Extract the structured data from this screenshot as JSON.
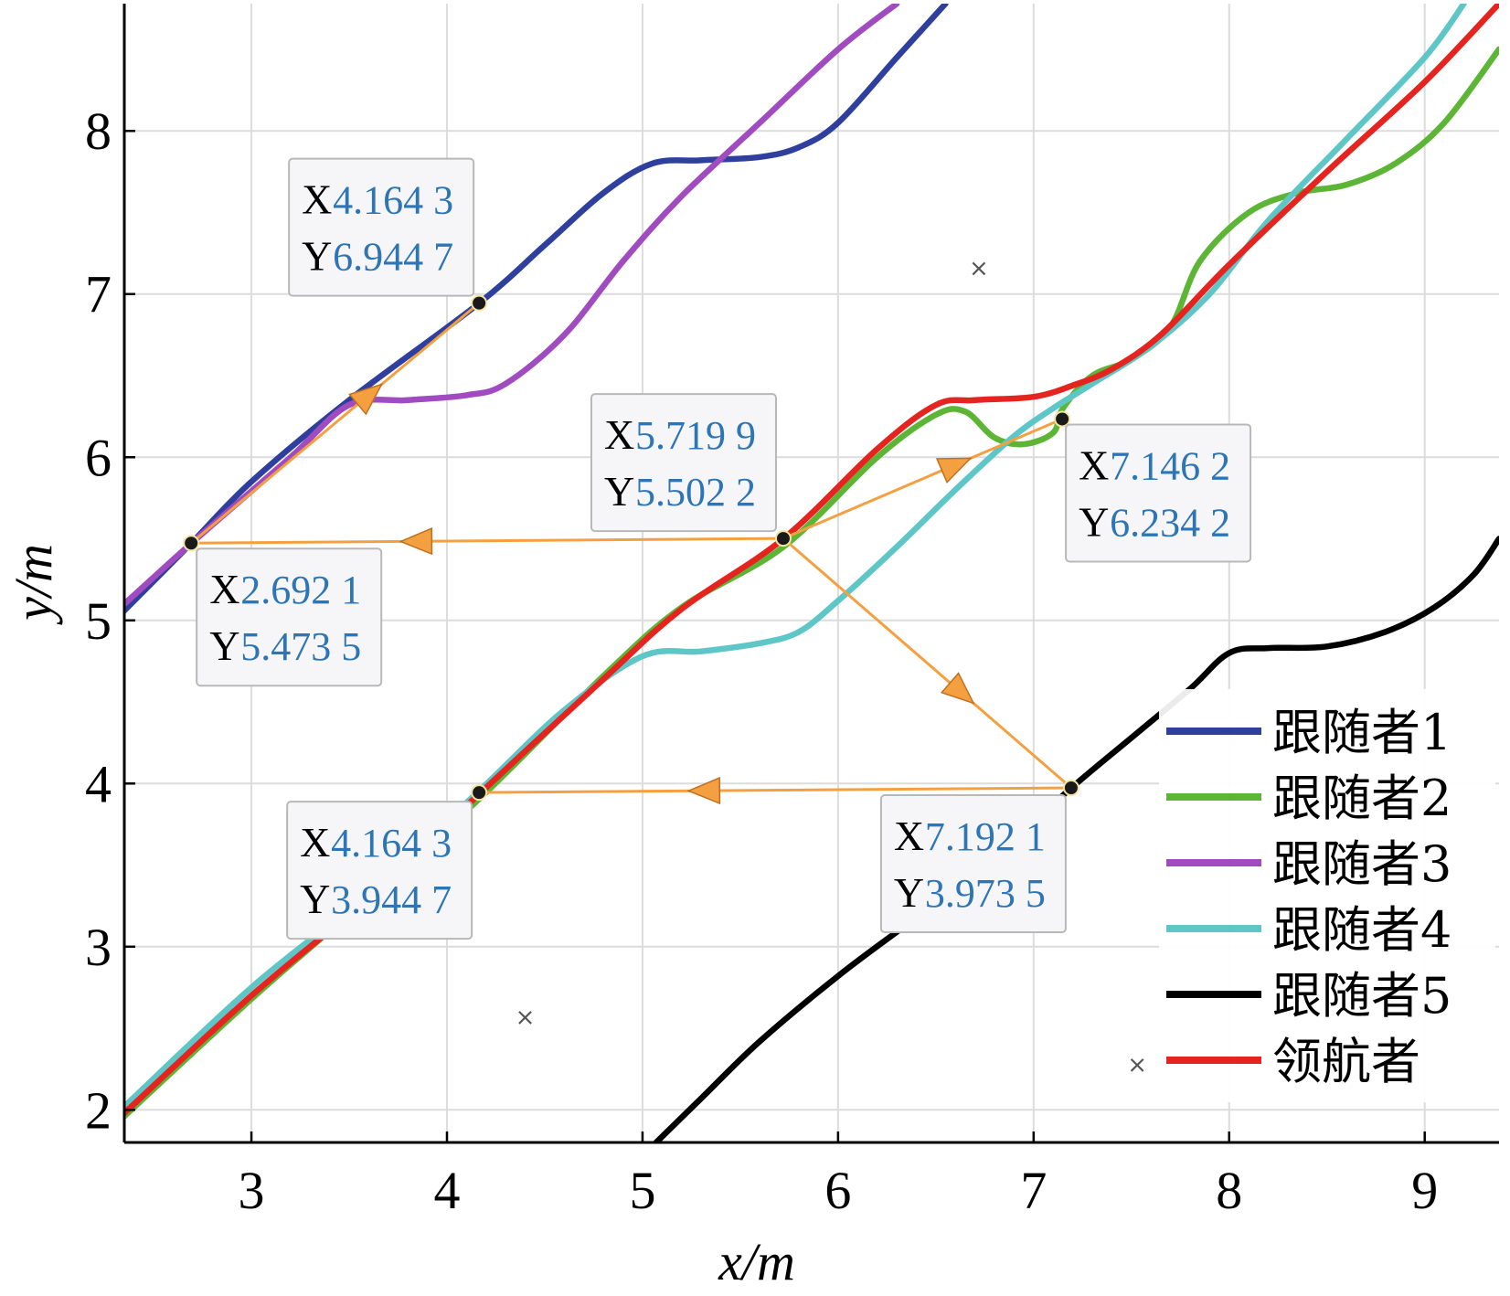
{
  "chart_data": {
    "type": "line",
    "title": "",
    "xlabel": "x/m",
    "ylabel": "y/m",
    "xlim": [
      2.35,
      9.38
    ],
    "ylim": [
      1.8,
      8.78
    ],
    "xticks": [
      3,
      4,
      5,
      6,
      7,
      8,
      9
    ],
    "yticks": [
      2,
      3,
      4,
      5,
      6,
      7,
      8
    ],
    "grid": true,
    "legend_position": "bottom-right",
    "series": [
      {
        "name": "跟随者1",
        "color": "#2e3f9e",
        "points": [
          [
            2.35,
            5.06
          ],
          [
            2.69,
            5.47
          ],
          [
            3.0,
            5.85
          ],
          [
            3.5,
            6.35
          ],
          [
            4.16,
            6.94
          ],
          [
            4.5,
            7.3
          ],
          [
            4.8,
            7.62
          ],
          [
            5.05,
            7.8
          ],
          [
            5.3,
            7.82
          ],
          [
            5.6,
            7.84
          ],
          [
            5.8,
            7.9
          ],
          [
            6.0,
            8.05
          ],
          [
            6.3,
            8.45
          ],
          [
            6.55,
            8.78
          ]
        ]
      },
      {
        "name": "跟随者2",
        "color": "#5cb535",
        "points": [
          [
            2.35,
            1.96
          ],
          [
            3.0,
            2.68
          ],
          [
            3.5,
            3.2
          ],
          [
            4.16,
            3.9
          ],
          [
            4.8,
            4.66
          ],
          [
            5.2,
            5.08
          ],
          [
            5.72,
            5.45
          ],
          [
            6.2,
            6.0
          ],
          [
            6.5,
            6.26
          ],
          [
            6.65,
            6.28
          ],
          [
            6.8,
            6.12
          ],
          [
            6.95,
            6.08
          ],
          [
            7.1,
            6.15
          ],
          [
            7.15,
            6.3
          ],
          [
            7.3,
            6.5
          ],
          [
            7.5,
            6.6
          ],
          [
            7.7,
            6.8
          ],
          [
            7.85,
            7.2
          ],
          [
            8.1,
            7.5
          ],
          [
            8.35,
            7.62
          ],
          [
            8.6,
            7.67
          ],
          [
            8.85,
            7.8
          ],
          [
            9.1,
            8.05
          ],
          [
            9.38,
            8.5
          ]
        ]
      },
      {
        "name": "跟随者3",
        "color": "#a04cc0",
        "points": [
          [
            2.35,
            5.1
          ],
          [
            2.7,
            5.48
          ],
          [
            3.2,
            6.0
          ],
          [
            3.5,
            6.32
          ],
          [
            3.8,
            6.35
          ],
          [
            4.1,
            6.38
          ],
          [
            4.3,
            6.45
          ],
          [
            4.6,
            6.75
          ],
          [
            4.9,
            7.2
          ],
          [
            5.2,
            7.6
          ],
          [
            5.6,
            8.05
          ],
          [
            6.0,
            8.5
          ],
          [
            6.3,
            8.78
          ]
        ]
      },
      {
        "name": "跟随者4",
        "color": "#5ec6c6",
        "points": [
          [
            2.35,
            2.02
          ],
          [
            3.0,
            2.75
          ],
          [
            3.6,
            3.33
          ],
          [
            4.16,
            3.95
          ],
          [
            4.6,
            4.45
          ],
          [
            5.0,
            4.78
          ],
          [
            5.3,
            4.81
          ],
          [
            5.6,
            4.86
          ],
          [
            5.8,
            4.93
          ],
          [
            6.0,
            5.12
          ],
          [
            6.3,
            5.45
          ],
          [
            6.6,
            5.8
          ],
          [
            6.9,
            6.13
          ],
          [
            7.1,
            6.3
          ],
          [
            7.3,
            6.45
          ],
          [
            7.6,
            6.68
          ],
          [
            7.9,
            7.0
          ],
          [
            8.2,
            7.45
          ],
          [
            8.6,
            7.95
          ],
          [
            9.0,
            8.45
          ],
          [
            9.2,
            8.78
          ]
        ]
      },
      {
        "name": "跟随者5",
        "color": "#000000",
        "points": [
          [
            5.07,
            1.8
          ],
          [
            5.3,
            2.07
          ],
          [
            5.6,
            2.42
          ],
          [
            6.0,
            2.82
          ],
          [
            6.4,
            3.18
          ],
          [
            6.8,
            3.55
          ],
          [
            7.19,
            3.97
          ],
          [
            7.5,
            4.28
          ],
          [
            7.8,
            4.58
          ],
          [
            8.0,
            4.8
          ],
          [
            8.2,
            4.83
          ],
          [
            8.5,
            4.84
          ],
          [
            8.8,
            4.93
          ],
          [
            9.05,
            5.08
          ],
          [
            9.25,
            5.28
          ],
          [
            9.38,
            5.5
          ]
        ]
      },
      {
        "name": "领航者",
        "color": "#e52420",
        "points": [
          [
            2.35,
            1.98
          ],
          [
            3.0,
            2.7
          ],
          [
            3.6,
            3.3
          ],
          [
            4.16,
            3.93
          ],
          [
            4.8,
            4.64
          ],
          [
            5.2,
            5.07
          ],
          [
            5.72,
            5.5
          ],
          [
            6.2,
            6.05
          ],
          [
            6.5,
            6.32
          ],
          [
            6.7,
            6.35
          ],
          [
            7.0,
            6.37
          ],
          [
            7.2,
            6.44
          ],
          [
            7.4,
            6.54
          ],
          [
            7.65,
            6.75
          ],
          [
            8.0,
            7.18
          ],
          [
            8.5,
            7.75
          ],
          [
            9.0,
            8.3
          ],
          [
            9.38,
            8.78
          ]
        ]
      }
    ],
    "datatips": [
      {
        "X": "4.164 3",
        "Y": "6.944 7",
        "x": 4.1643,
        "y": 6.9447
      },
      {
        "X": "2.692 1",
        "Y": "5.473 5",
        "x": 2.6921,
        "y": 5.4735
      },
      {
        "X": "5.719 9",
        "Y": "5.502 2",
        "x": 5.7199,
        "y": 5.5022
      },
      {
        "X": "7.146 2",
        "Y": "6.234 2",
        "x": 7.1462,
        "y": 6.2342
      },
      {
        "X": "4.164 3",
        "Y": "3.944 7",
        "x": 4.1643,
        "y": 3.9447
      },
      {
        "X": "7.192 1",
        "Y": "3.973 5",
        "x": 7.1921,
        "y": 3.9735
      }
    ],
    "arrows": [
      {
        "from": [
          2.6921,
          5.4735
        ],
        "to": [
          4.1643,
          6.9447
        ]
      },
      {
        "from": [
          5.7199,
          5.5022
        ],
        "to": [
          2.6921,
          5.4735
        ]
      },
      {
        "from": [
          5.7199,
          5.5022
        ],
        "to": [
          7.1462,
          6.2342
        ]
      },
      {
        "from": [
          5.7199,
          5.5022
        ],
        "to": [
          7.1921,
          3.9735
        ]
      },
      {
        "from": [
          7.1921,
          3.9735
        ],
        "to": [
          4.1643,
          3.9447
        ]
      }
    ],
    "obstacles": [
      [
        6.72,
        7.16
      ],
      [
        4.4,
        2.57
      ],
      [
        7.53,
        2.28
      ]
    ],
    "arrow_color": "#f4a040",
    "obstacle_marker": "×"
  }
}
